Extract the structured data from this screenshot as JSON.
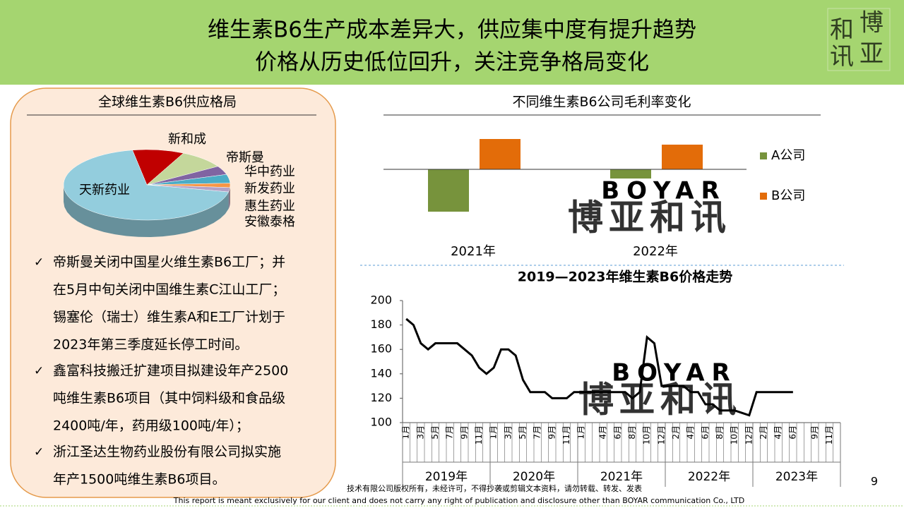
{
  "header": {
    "lines": [
      "维生素B6生产成本差异大，供应集中度有提升趋势",
      "价格从历史低位回升，关注竞争格局变化"
    ]
  },
  "logo": [
    "和",
    "博",
    "讯",
    "亚"
  ],
  "watermark": {
    "en": "BOYAR",
    "cn": "博亚和讯"
  },
  "chart_data": [
    {
      "type": "pie",
      "title": "全球维生素B6供应格局",
      "categories": [
        "新和成",
        "帝斯曼",
        "华中药业",
        "新发药业",
        "惠生药业",
        "安徽泰格",
        "天新药业"
      ],
      "values": [
        10,
        9,
        4,
        4,
        2,
        2,
        69
      ],
      "colors": [
        "#c00000",
        "#c4d79b",
        "#8064a2",
        "#4bacc6",
        "#f79646",
        "#b3a2c7",
        "#93cddd"
      ]
    },
    {
      "type": "bar",
      "title": "不同维生素B6公司毛利率变化",
      "categories": [
        "2021年",
        "2022年"
      ],
      "series": [
        {
          "name": "A公司",
          "color": "#77933c",
          "values": [
            -60,
            -13
          ]
        },
        {
          "name": "B公司",
          "color": "#e36c09",
          "values": [
            43,
            35
          ]
        }
      ],
      "legend": "right"
    },
    {
      "type": "line",
      "title": "2019—2023年维生素B6价格走势",
      "categories": [
        "1月",
        null,
        "3月",
        null,
        "5月",
        null,
        "7月",
        null,
        "9月",
        null,
        "11月",
        null,
        "1月",
        null,
        "3月",
        null,
        "5月",
        null,
        "7月",
        null,
        "9月",
        null,
        "11月",
        null,
        "1月",
        null,
        null,
        "4月",
        null,
        "6月",
        null,
        "8月",
        null,
        "10月",
        null,
        "12月",
        null,
        "2月",
        null,
        "4月",
        null,
        "6月",
        null,
        "8月",
        null,
        "10月",
        null,
        "12月",
        null,
        "2月",
        null,
        "4月",
        null,
        "6月",
        null,
        null,
        "9月",
        null,
        "11月",
        null
      ],
      "x_groups": [
        "2019年",
        "2020年",
        "2021年",
        "2022年",
        "2023年"
      ],
      "values": [
        185,
        180,
        165,
        160,
        165,
        165,
        165,
        165,
        160,
        155,
        145,
        140,
        145,
        160,
        160,
        155,
        135,
        125,
        125,
        125,
        120,
        120,
        120,
        125,
        125,
        125,
        125,
        125,
        125,
        125,
        125,
        120,
        125,
        170,
        165,
        130,
        130,
        130,
        130,
        125,
        125,
        115,
        115,
        110,
        110,
        110,
        108,
        106,
        125,
        125,
        125,
        125,
        125,
        125,
        null,
        null,
        null,
        null,
        null,
        null
      ],
      "color": "#000000",
      "ylim": [
        100,
        200
      ],
      "yticks": [
        100,
        120,
        140,
        160,
        180,
        200
      ]
    }
  ],
  "bullets": [
    {
      "lines": [
        "帝斯曼关闭中国星火维生素B6工厂；并",
        "在5月中旬关闭中国维生素C江山工厂；",
        "锡塞伦（瑞士）维生素A和E工厂计划于",
        "2023年第三季度延长停工时间。"
      ]
    },
    {
      "lines": [
        "鑫富科技搬迁扩建项目拟建设年产2500",
        "吨维生素B6项目（其中饲料级和食品级",
        "2400吨/年，药用级100吨/年）；"
      ]
    },
    {
      "lines": [
        "浙江圣达生物药业股份有限公司拟实施",
        "年产1500吨维生素B6项目。"
      ]
    }
  ],
  "bullet_mark": "✓",
  "footer": [
    "技术有限公司版权所有，未经许可，不得抄袭或剪辑文本资料，请勿转载、转发、发表",
    "This report is meant exclusively for our client and does not carry any right of publication and disclosure other than BOYAR communication Co., LTD"
  ],
  "page_number": "9"
}
